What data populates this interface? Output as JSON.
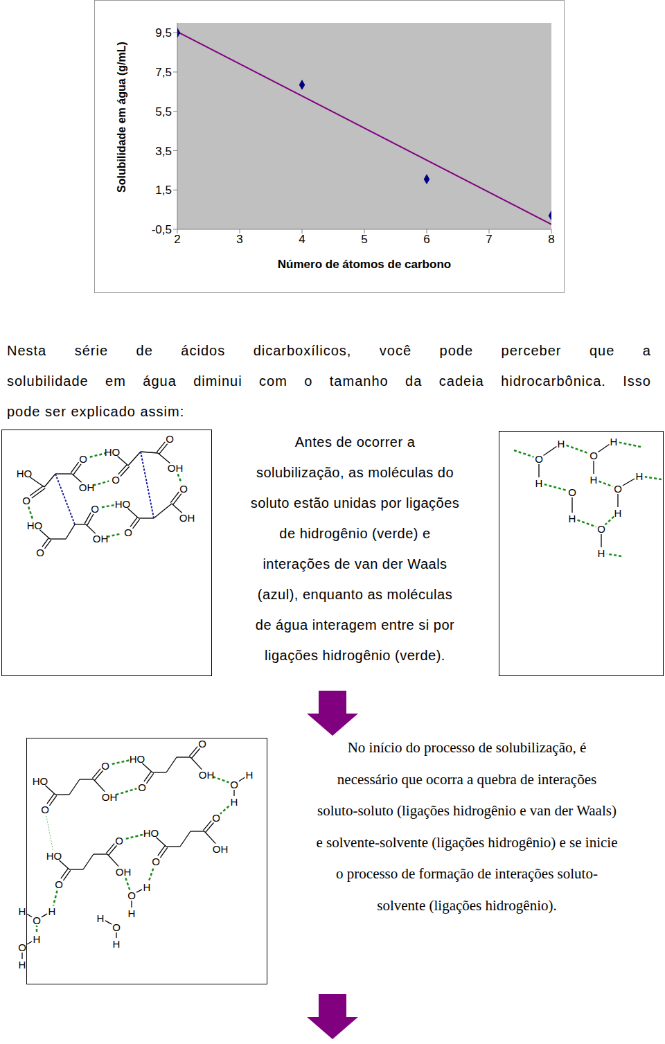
{
  "chart_data": {
    "type": "scatter",
    "xlabel": "Número de átomos de carbono",
    "ylabel": "Solubilidade em água (g/mL)",
    "xlim": [
      2,
      8
    ],
    "xticks": [
      2,
      3,
      4,
      5,
      6,
      7,
      8
    ],
    "ylim": [
      -0.5,
      10
    ],
    "yticks": [
      {
        "value": -0.5,
        "label": "-0,5"
      },
      {
        "value": 1.5,
        "label": "1,5"
      },
      {
        "value": 3.5,
        "label": "3,5"
      },
      {
        "value": 5.5,
        "label": "5,5"
      },
      {
        "value": 7.5,
        "label": "7,5"
      },
      {
        "value": 9.5,
        "label": "9,5"
      }
    ],
    "grid": false,
    "series": [
      {
        "type": "line",
        "color": "#800080",
        "line_style": "solid",
        "x": [
          2,
          8
        ],
        "values": [
          9.55,
          -0.25
        ]
      },
      {
        "type": "scatter",
        "color": "#000080",
        "marker": "diamond",
        "x": [
          2,
          4,
          6,
          8
        ],
        "values": [
          9.5,
          6.85,
          2.05,
          0.2
        ]
      }
    ]
  },
  "paragraph": [
    "Nesta série de ácidos dicarboxílicos, você pode perceber que a",
    "solubilidade em água diminui com o tamanho da cadeia hidrocarbônica. Isso",
    "pode ser explicado assim:"
  ],
  "panel1": {
    "text": [
      "Antes de ocorrer a",
      "solubilização, as moléculas do",
      "soluto estão unidas por ligações",
      "de hidrogênio (verde) e",
      "interações de van der Waals",
      "(azul), enquanto as moléculas",
      "de água interagem entre si por",
      "ligações hidrogênio (verde)."
    ],
    "solute_atoms": [
      "HO",
      "O",
      "HO",
      "O",
      "O",
      "OH",
      "HO",
      "O",
      "O",
      "HO",
      "OH",
      "O",
      "O",
      "OH",
      "O",
      "OH"
    ],
    "water_atoms": [
      "O",
      "H",
      "H",
      "O",
      "H",
      "H",
      "O",
      "H",
      "O",
      "H",
      "H",
      "O",
      "H"
    ]
  },
  "panel2": {
    "text": [
      "No início do processo de solubilização, é",
      "necessário que ocorra a quebra de interações",
      "soluto-soluto (ligações hidrogênio e van der Waals)",
      "e solvente-solvente (ligações hidrogênio) e se inicie",
      "o processo de formação de interações soluto-",
      "solvente (ligações hidrogênio)."
    ],
    "molecules": [
      [
        "HO",
        "O",
        "O",
        "OH"
      ],
      [
        "HO",
        "O",
        "O",
        "OH"
      ],
      [
        "HO",
        "O",
        "O",
        "OH"
      ],
      [
        "HO",
        "O",
        "O",
        "OH"
      ]
    ],
    "waters": [
      [
        "O",
        "H",
        "H"
      ],
      [
        "O",
        "H",
        "H"
      ],
      [
        "H",
        "O",
        "H"
      ],
      [
        "H",
        "O",
        "H"
      ],
      [
        "O",
        "H",
        "H"
      ]
    ]
  }
}
